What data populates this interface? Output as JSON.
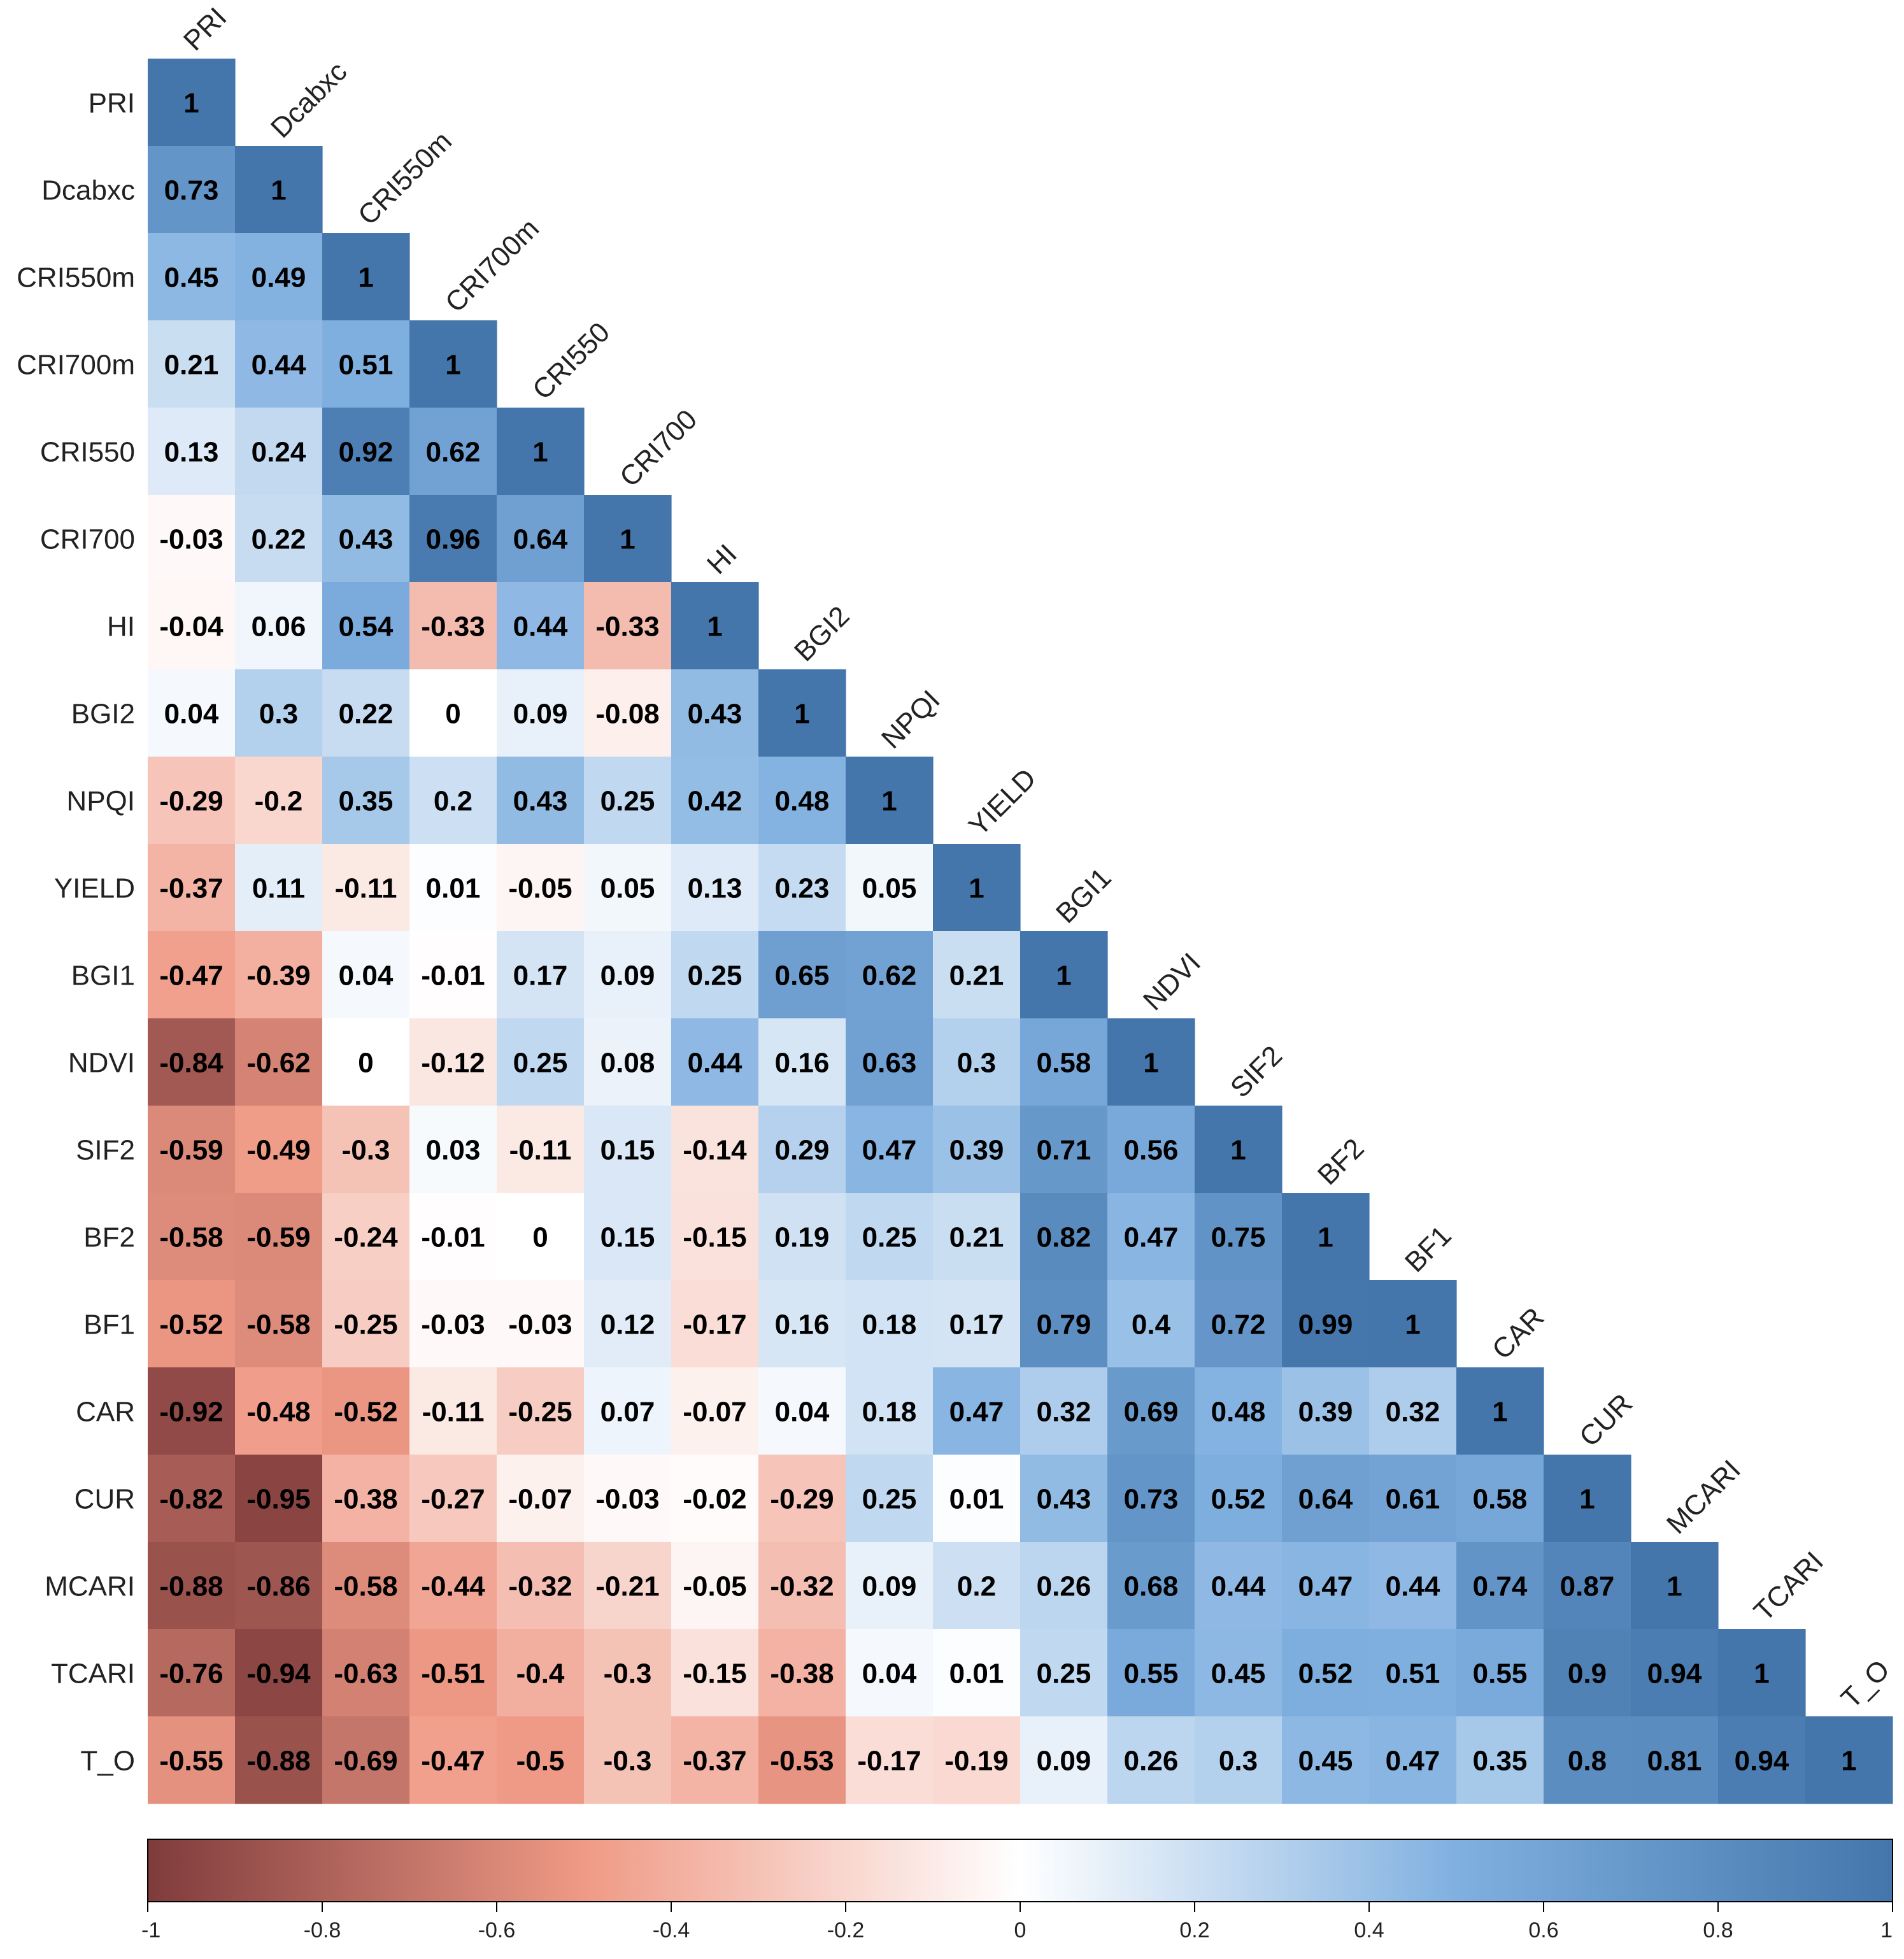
{
  "chart_data": {
    "type": "heatmap",
    "subtype": "correlation-lower-triangle",
    "variables": [
      "PRI",
      "Dcabxc",
      "CRI550m",
      "CRI700m",
      "CRI550",
      "CRI700",
      "HI",
      "BGI2",
      "NPQI",
      "YIELD",
      "BGI1",
      "NDVI",
      "SIF2",
      "BF2",
      "BF1",
      "CAR",
      "CUR",
      "MCARI",
      "TCARI",
      "T_O"
    ],
    "matrix": [
      [
        1
      ],
      [
        0.73,
        1
      ],
      [
        0.45,
        0.49,
        1
      ],
      [
        0.21,
        0.44,
        0.51,
        1
      ],
      [
        0.13,
        0.24,
        0.92,
        0.62,
        1
      ],
      [
        -0.03,
        0.22,
        0.43,
        0.96,
        0.64,
        1
      ],
      [
        -0.04,
        0.06,
        0.54,
        -0.33,
        0.44,
        -0.33,
        1
      ],
      [
        0.04,
        0.3,
        0.22,
        0,
        0.09,
        -0.08,
        0.43,
        1
      ],
      [
        -0.29,
        -0.2,
        0.35,
        0.2,
        0.43,
        0.25,
        0.42,
        0.48,
        1
      ],
      [
        -0.37,
        0.11,
        -0.11,
        0.01,
        -0.05,
        0.05,
        0.13,
        0.23,
        0.05,
        1
      ],
      [
        -0.47,
        -0.39,
        0.04,
        -0.01,
        0.17,
        0.09,
        0.25,
        0.65,
        0.62,
        0.21,
        1
      ],
      [
        -0.84,
        -0.62,
        0,
        -0.12,
        0.25,
        0.08,
        0.44,
        0.16,
        0.63,
        0.3,
        0.58,
        1
      ],
      [
        -0.59,
        -0.49,
        -0.3,
        0.03,
        -0.11,
        0.15,
        -0.14,
        0.29,
        0.47,
        0.39,
        0.71,
        0.56,
        1
      ],
      [
        -0.58,
        -0.59,
        -0.24,
        -0.01,
        0,
        0.15,
        -0.15,
        0.19,
        0.25,
        0.21,
        0.82,
        0.47,
        0.75,
        1
      ],
      [
        -0.52,
        -0.58,
        -0.25,
        -0.03,
        -0.03,
        0.12,
        -0.17,
        0.16,
        0.18,
        0.17,
        0.79,
        0.4,
        0.72,
        0.99,
        1
      ],
      [
        -0.92,
        -0.48,
        -0.52,
        -0.11,
        -0.25,
        0.07,
        -0.07,
        0.04,
        0.18,
        0.47,
        0.32,
        0.69,
        0.48,
        0.39,
        0.32,
        1
      ],
      [
        -0.82,
        -0.95,
        -0.38,
        -0.27,
        -0.07,
        -0.03,
        -0.02,
        -0.29,
        0.25,
        0.01,
        0.43,
        0.73,
        0.52,
        0.64,
        0.61,
        0.58,
        1
      ],
      [
        -0.88,
        -0.86,
        -0.58,
        -0.44,
        -0.32,
        -0.21,
        -0.05,
        -0.32,
        0.09,
        0.2,
        0.26,
        0.68,
        0.44,
        0.47,
        0.44,
        0.74,
        0.87,
        1
      ],
      [
        -0.76,
        -0.94,
        -0.63,
        -0.51,
        -0.4,
        -0.3,
        -0.15,
        -0.38,
        0.04,
        0.01,
        0.25,
        0.55,
        0.45,
        0.52,
        0.51,
        0.55,
        0.9,
        0.94,
        1
      ],
      [
        -0.55,
        -0.88,
        -0.69,
        -0.47,
        -0.5,
        -0.3,
        -0.37,
        -0.53,
        -0.17,
        -0.19,
        0.09,
        0.26,
        0.3,
        0.45,
        0.47,
        0.35,
        0.8,
        0.81,
        0.94,
        1
      ]
    ],
    "color_scale": {
      "range": [
        -1,
        1
      ],
      "ticks": [
        "-1",
        "-0.8",
        "-0.6",
        "-0.4",
        "-0.2",
        "0",
        "0.2",
        "0.4",
        "0.6",
        "0.8",
        "1"
      ],
      "stops": [
        {
          "value": -1,
          "color": "#7f3b3b"
        },
        {
          "value": -0.5,
          "color": "#ef9a86"
        },
        {
          "value": 0,
          "color": "#ffffff"
        },
        {
          "value": 0.5,
          "color": "#80b0e0"
        },
        {
          "value": 1,
          "color": "#4476ac"
        }
      ],
      "legend_position": "bottom"
    },
    "title": "",
    "xlabel": "",
    "ylabel": ""
  }
}
